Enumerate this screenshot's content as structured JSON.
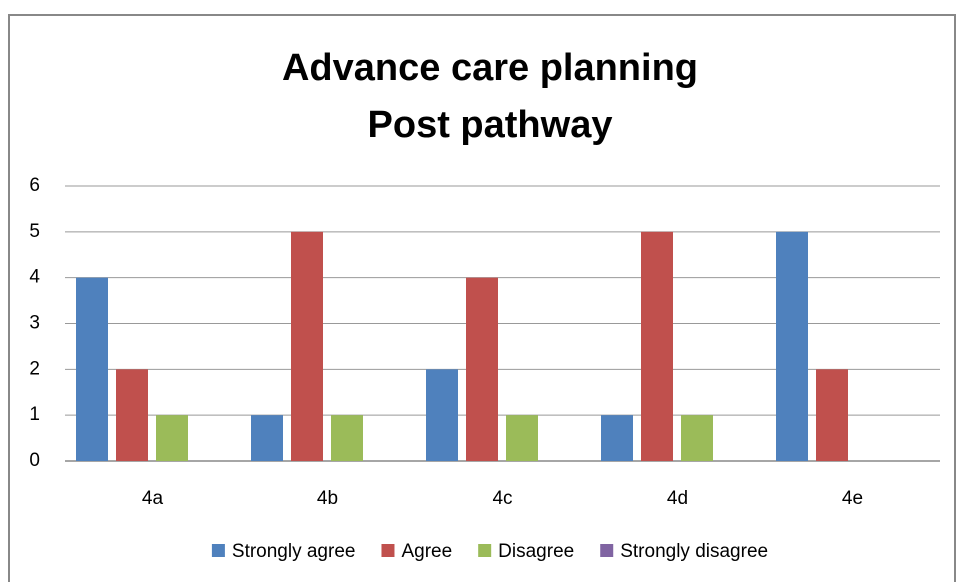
{
  "chart_data": {
    "type": "bar",
    "title": "Advance care planning",
    "subtitle": "Post pathway",
    "categories": [
      "4a",
      "4b",
      "4c",
      "4d",
      "4e"
    ],
    "series": [
      {
        "name": "Strongly agree",
        "color": "#4f81bd",
        "values": [
          4,
          1,
          2,
          1,
          5
        ]
      },
      {
        "name": "Agree",
        "color": "#c0504d",
        "values": [
          2,
          5,
          4,
          5,
          2
        ]
      },
      {
        "name": "Disagree",
        "color": "#9bbb59",
        "values": [
          1,
          1,
          1,
          1,
          0
        ]
      },
      {
        "name": "Strongly disagree",
        "color": "#8064a2",
        "values": [
          0,
          0,
          0,
          0,
          0
        ]
      }
    ],
    "ylim": [
      0,
      6
    ],
    "yticks": [
      0,
      1,
      2,
      3,
      4,
      5,
      6
    ],
    "grid": true,
    "legend": "bottom"
  }
}
